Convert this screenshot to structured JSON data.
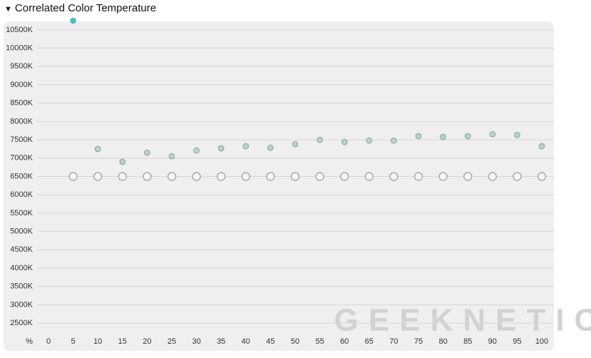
{
  "chart_data": {
    "type": "scatter",
    "title": "Correlated Color Temperature",
    "x_label": "%",
    "x": [
      0,
      5,
      10,
      15,
      20,
      25,
      30,
      35,
      40,
      45,
      50,
      55,
      60,
      65,
      70,
      75,
      80,
      85,
      90,
      95,
      100
    ],
    "xlim": [
      0,
      100
    ],
    "xticks": [
      0,
      5,
      10,
      15,
      20,
      25,
      30,
      35,
      40,
      45,
      50,
      55,
      60,
      65,
      70,
      75,
      80,
      85,
      90,
      95,
      100
    ],
    "ylim": [
      2250,
      10750
    ],
    "yticks": [
      {
        "value": 2500,
        "label": "2500K"
      },
      {
        "value": 3000,
        "label": "3000K"
      },
      {
        "value": 3500,
        "label": "3500K"
      },
      {
        "value": 4000,
        "label": "4000K"
      },
      {
        "value": 4500,
        "label": "4500K"
      },
      {
        "value": 5000,
        "label": "5000K"
      },
      {
        "value": 5500,
        "label": "5500K"
      },
      {
        "value": 6000,
        "label": "6000K"
      },
      {
        "value": 6500,
        "label": "6500K"
      },
      {
        "value": 7000,
        "label": "7000K"
      },
      {
        "value": 7500,
        "label": "7500K"
      },
      {
        "value": 8000,
        "label": "8000K"
      },
      {
        "value": 8500,
        "label": "8500K"
      },
      {
        "value": 9000,
        "label": "9000K"
      },
      {
        "value": 9500,
        "label": "9500K"
      },
      {
        "value": 10000,
        "label": "10000K"
      },
      {
        "value": 10500,
        "label": "10500K"
      }
    ],
    "grid": true,
    "series": [
      {
        "marker": "hollow",
        "color": "#aaaaaa",
        "values": [
          null,
          6500,
          6500,
          6500,
          6500,
          6500,
          6500,
          6500,
          6500,
          6500,
          6500,
          6500,
          6500,
          6500,
          6500,
          6500,
          6500,
          6500,
          6500,
          6500,
          6500
        ]
      },
      {
        "marker": "filled",
        "color": "#b8d4c4",
        "colors": [
          null,
          "#2ec9d6",
          "#b8d4c4",
          "#b8d4c4",
          "#b8d4c4",
          "#b8d4c4",
          "#b8d4c4",
          "#b8d4c4",
          "#b8d4c4",
          "#b8d4c4",
          "#b8d4c4",
          "#b8d4c4",
          "#b8d4c4",
          "#b8d4c4",
          "#b8d4c4",
          "#b8d4c4",
          "#b8d4c4",
          "#b8d4c4",
          "#b8d4c4",
          "#b8d4c4",
          "#b8d4c4"
        ],
        "values": [
          null,
          10750,
          7250,
          6900,
          7150,
          7050,
          7210,
          7270,
          7325,
          7285,
          7380,
          7500,
          7440,
          7480,
          7480,
          7600,
          7580,
          7600,
          7655,
          7635,
          7325
        ]
      }
    ],
    "watermark": "GEEKNETIC"
  }
}
